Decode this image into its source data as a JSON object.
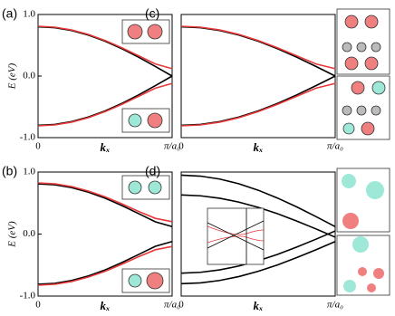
{
  "chart_data": [
    {
      "type": "line",
      "panel_label": "(a)",
      "xlabel": "kₓ",
      "ylabel": "E (eV)",
      "x": [
        0,
        0.125,
        0.25,
        0.375,
        0.5,
        0.625,
        0.75,
        0.875,
        1
      ],
      "xlim": [
        0,
        1
      ],
      "xticks": [
        0,
        {
          "value": 1,
          "label": "π/a₀"
        }
      ],
      "ylim": [
        -1,
        1
      ],
      "yticks": [
        {
          "value": -1,
          "label": "-1.0"
        },
        {
          "value": 0,
          "label": "0.0"
        },
        {
          "value": 1,
          "label": "1.0"
        }
      ],
      "series": [
        {
          "color": "#e83a3a",
          "values": [
            0.809,
            0.794,
            0.749,
            0.676,
            0.578,
            0.46,
            0.329,
            0.197,
            0.12
          ]
        },
        {
          "color": "#e83a3a",
          "values": [
            -0.809,
            -0.794,
            -0.749,
            -0.676,
            -0.578,
            -0.46,
            -0.329,
            -0.197,
            -0.12
          ]
        },
        {
          "color": "#000000",
          "values": [
            0.8,
            0.785,
            0.739,
            0.665,
            0.566,
            0.444,
            0.306,
            0.156,
            0
          ]
        },
        {
          "color": "#000000",
          "values": [
            -0.8,
            -0.785,
            -0.739,
            -0.665,
            -0.566,
            -0.444,
            -0.306,
            -0.156,
            0
          ]
        }
      ]
    },
    {
      "type": "line",
      "panel_label": "(b)",
      "xlabel": "kₓ",
      "ylabel": "E (eV)",
      "x": [
        0,
        0.125,
        0.25,
        0.375,
        0.5,
        0.625,
        0.75,
        0.875,
        1
      ],
      "xlim": [
        0,
        1
      ],
      "xticks": [
        0,
        {
          "value": 1,
          "label": "π/a₀"
        }
      ],
      "ylim": [
        -1,
        1
      ],
      "yticks": [
        {
          "value": -1,
          "label": "-1.0"
        },
        {
          "value": 0,
          "label": "0.0"
        },
        {
          "value": 1,
          "label": "1.0"
        }
      ],
      "series": [
        {
          "color": "#e83a3a",
          "values": [
            0.825,
            0.81,
            0.766,
            0.694,
            0.6,
            0.487,
            0.365,
            0.253,
            0.2
          ]
        },
        {
          "color": "#e83a3a",
          "values": [
            -0.825,
            -0.81,
            -0.766,
            -0.694,
            -0.6,
            -0.487,
            -0.365,
            -0.253,
            -0.2
          ]
        },
        {
          "color": "#000000",
          "values": [
            0.809,
            0.794,
            0.749,
            0.676,
            0.578,
            0.46,
            0.329,
            0.197,
            0.12
          ]
        },
        {
          "color": "#000000",
          "values": [
            -0.809,
            -0.794,
            -0.749,
            -0.676,
            -0.578,
            -0.46,
            -0.329,
            -0.197,
            -0.12
          ]
        }
      ]
    },
    {
      "type": "line",
      "panel_label": "(c)",
      "xlabel": "kₓ",
      "x": [
        0,
        0.125,
        0.25,
        0.375,
        0.5,
        0.625,
        0.75,
        0.875,
        1
      ],
      "xlim": [
        0,
        1
      ],
      "xticks": [
        0,
        {
          "value": 1,
          "label": "π/a₀"
        }
      ],
      "ylim": [
        -1,
        1
      ],
      "series": [
        {
          "color": "#e83a3a",
          "values": [
            0.809,
            0.794,
            0.749,
            0.676,
            0.578,
            0.46,
            0.329,
            0.197,
            0.12
          ]
        },
        {
          "color": "#e83a3a",
          "values": [
            -0.809,
            -0.794,
            -0.749,
            -0.676,
            -0.578,
            -0.46,
            -0.329,
            -0.197,
            -0.12
          ]
        },
        {
          "color": "#000000",
          "values": [
            0.8,
            0.785,
            0.739,
            0.665,
            0.566,
            0.444,
            0.306,
            0.156,
            0
          ]
        },
        {
          "color": "#000000",
          "values": [
            -0.8,
            -0.785,
            -0.739,
            -0.665,
            -0.566,
            -0.444,
            -0.306,
            -0.156,
            0
          ]
        }
      ]
    },
    {
      "type": "line",
      "panel_label": "(d)",
      "xlabel": "kₓ",
      "x": [
        0,
        0.125,
        0.25,
        0.375,
        0.5,
        0.625,
        0.75,
        0.875,
        1
      ],
      "xlim": [
        0,
        1
      ],
      "xticks": [
        0,
        {
          "value": 1,
          "label": "π/a₀"
        }
      ],
      "ylim": [
        -1,
        1
      ],
      "series": [
        {
          "color": "#000000",
          "values": [
            0.95,
            0.934,
            0.887,
            0.81,
            0.707,
            0.581,
            0.438,
            0.282,
            0.12
          ]
        },
        {
          "color": "#000000",
          "values": [
            0.63,
            0.617,
            0.578,
            0.515,
            0.431,
            0.328,
            0.21,
            0.083,
            -0.05
          ]
        },
        {
          "color": "#000000",
          "values": [
            -0.63,
            -0.617,
            -0.578,
            -0.515,
            -0.431,
            -0.328,
            -0.21,
            -0.083,
            0.05
          ]
        },
        {
          "color": "#000000",
          "values": [
            -0.8,
            -0.787,
            -0.748,
            -0.685,
            -0.601,
            -0.498,
            -0.38,
            -0.253,
            -0.12
          ]
        }
      ]
    }
  ]
}
